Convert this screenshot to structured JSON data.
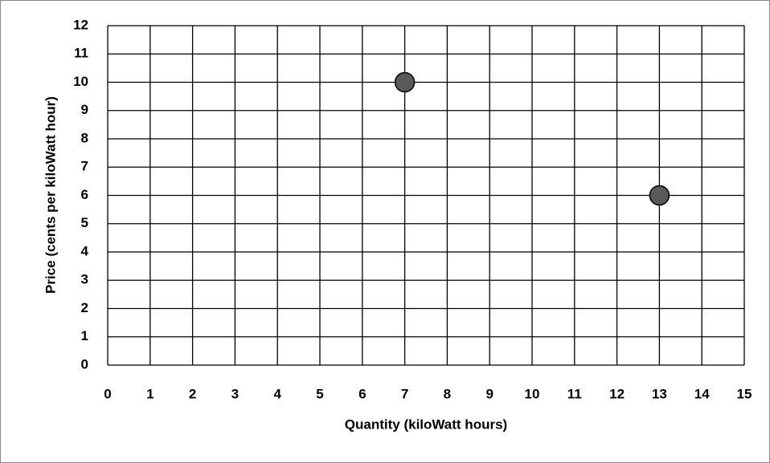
{
  "chart_data": {
    "type": "scatter",
    "x_label": "Quantity (kiloWatt hours)",
    "y_label": "Price (cents per kiloWatt hour)",
    "x": [
      7,
      13
    ],
    "values": [
      10,
      6
    ],
    "color": "#595959",
    "xlim": [
      0,
      15
    ],
    "xticks": [
      0,
      1,
      2,
      3,
      4,
      5,
      6,
      7,
      8,
      9,
      10,
      11,
      12,
      13,
      14,
      15
    ],
    "ylim": [
      0,
      12
    ],
    "yticks": [
      0,
      1,
      2,
      3,
      4,
      5,
      6,
      7,
      8,
      9,
      10,
      11,
      12
    ],
    "grid": true
  }
}
